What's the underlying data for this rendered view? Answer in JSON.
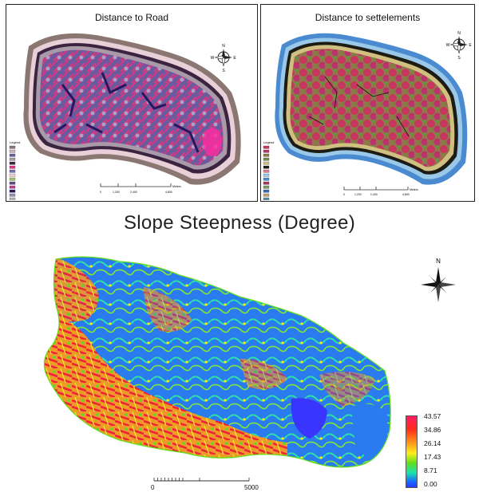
{
  "panels": {
    "road": {
      "title": "Distance to Road",
      "legend_title": "Legend",
      "scale_unit": "Meters",
      "scale_ticks": [
        "0",
        "1,200",
        "2,400",
        "4,800"
      ]
    },
    "settlements": {
      "title": "Distance to settelements",
      "legend_title": "Legend",
      "scale_unit": "Meters",
      "scale_ticks": [
        "0",
        "1,200",
        "2,400",
        "4,800"
      ]
    }
  },
  "compass_letters": {
    "n": "N",
    "s": "S",
    "e": "E",
    "w": "W"
  },
  "slope": {
    "title": "Slope Steepness (Degree)",
    "north_label": "N",
    "colorbar_ticks": [
      "43.57",
      "34.86",
      "26.14",
      "17.43",
      "8.71",
      "0.00"
    ],
    "colorbar_colors": [
      "#ff1a66",
      "#ff2a1a",
      "#ff9a1a",
      "#ffee1a",
      "#5ee01a",
      "#1ae0b0",
      "#1a6aff"
    ],
    "scalebar_labels": [
      "0",
      "5000"
    ]
  }
}
